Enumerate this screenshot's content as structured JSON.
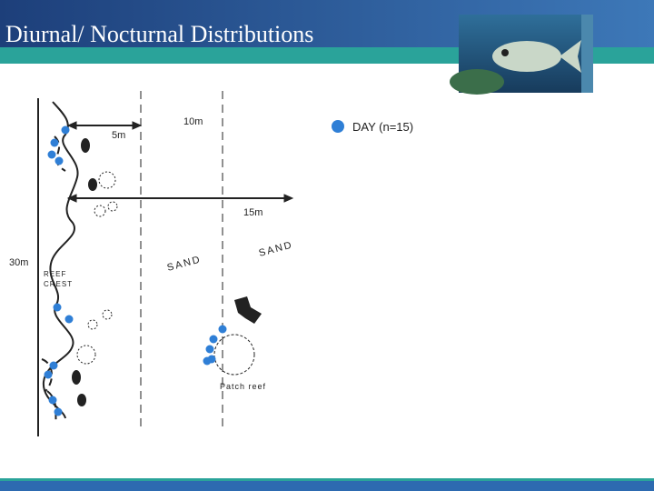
{
  "header": {
    "title": "Diurnal/ Nocturnal Distributions"
  },
  "diagram": {
    "distance_labels": [
      "5m",
      "10m",
      "15m",
      "30m"
    ],
    "reef_crest": [
      "REEF",
      "CREST"
    ],
    "sand_labels": [
      "SAND",
      "SAND"
    ],
    "patch_reef": "Patch reef",
    "legend": "DAY (n=15)"
  }
}
